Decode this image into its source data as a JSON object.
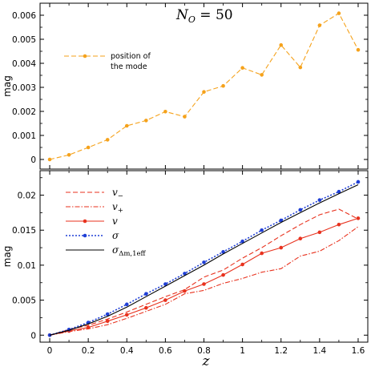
{
  "chart_data": [
    {
      "type": "line",
      "title": "N_O = 50",
      "title_main": "N",
      "title_sub": "O",
      "title_rest": " = 50",
      "xlabel": "z",
      "ylabel": "mag",
      "xlim": [
        -0.05,
        1.65
      ],
      "ylim": [
        -0.0004,
        0.0065
      ],
      "xticks": [
        "0",
        "0.2",
        "0.4",
        "0.6",
        "0.8",
        "1",
        "1.2",
        "1.4",
        "1.6"
      ],
      "yticks": [
        "0",
        "0.001",
        "0.002",
        "0.003",
        "0.004",
        "0.005",
        "0.006"
      ],
      "legend_position": "upper-left",
      "series": [
        {
          "name": "position of the mode",
          "legend_lines": [
            "position of",
            "the mode"
          ],
          "color": "#f5a21b",
          "style": "dashed",
          "marker": "circle",
          "x": [
            0,
            0.1,
            0.2,
            0.3,
            0.4,
            0.5,
            0.6,
            0.7,
            0.8,
            0.9,
            1.0,
            1.1,
            1.2,
            1.3,
            1.4,
            1.5,
            1.6
          ],
          "y": [
            0.0,
            0.00019,
            0.0005,
            0.00082,
            0.0014,
            0.00162,
            0.00199,
            0.00178,
            0.00281,
            0.00306,
            0.00381,
            0.00352,
            0.00476,
            0.00383,
            0.00558,
            0.00608,
            0.00456
          ]
        }
      ]
    },
    {
      "type": "line",
      "xlabel": "z",
      "ylabel": "mag",
      "xlim": [
        -0.05,
        1.65
      ],
      "ylim": [
        -0.001,
        0.0235
      ],
      "xticks": [
        "0",
        "0.2",
        "0.4",
        "0.6",
        "0.8",
        "1",
        "1.2",
        "1.4",
        "1.6"
      ],
      "yticks": [
        "0",
        "0.005",
        "0.01",
        "0.015",
        "0.02"
      ],
      "legend_position": "upper-left",
      "series": [
        {
          "name": "v−",
          "label_main": "v",
          "label_sub": "−",
          "color": "#e8321e",
          "style": "dashed",
          "marker": "none",
          "x": [
            0,
            0.1,
            0.2,
            0.3,
            0.4,
            0.5,
            0.6,
            0.7,
            0.8,
            0.9,
            1.0,
            1.1,
            1.2,
            1.3,
            1.4,
            1.5,
            1.6
          ],
          "y": [
            0,
            0.0008,
            0.0014,
            0.0023,
            0.0033,
            0.0044,
            0.0055,
            0.0065,
            0.0083,
            0.0093,
            0.011,
            0.0125,
            0.0142,
            0.0158,
            0.0172,
            0.018,
            0.0166
          ]
        },
        {
          "name": "v+",
          "label_main": "v",
          "label_sub": "+",
          "color": "#e8321e",
          "style": "dashdot",
          "marker": "none",
          "x": [
            0,
            0.1,
            0.2,
            0.3,
            0.4,
            0.5,
            0.6,
            0.7,
            0.8,
            0.9,
            1.0,
            1.1,
            1.2,
            1.3,
            1.4,
            1.5,
            1.6
          ],
          "y": [
            0,
            0.0005,
            0.0009,
            0.0015,
            0.0024,
            0.0034,
            0.0044,
            0.0059,
            0.0064,
            0.0074,
            0.0081,
            0.009,
            0.0095,
            0.0113,
            0.012,
            0.0135,
            0.0155
          ]
        },
        {
          "name": "v",
          "label_main": "v",
          "label_sub": "",
          "color": "#e8321e",
          "style": "solid",
          "marker": "circle",
          "x": [
            0,
            0.1,
            0.2,
            0.3,
            0.4,
            0.5,
            0.6,
            0.7,
            0.8,
            0.9,
            1.0,
            1.1,
            1.2,
            1.3,
            1.4,
            1.5,
            1.6
          ],
          "y": [
            0,
            0.0006,
            0.0011,
            0.002,
            0.0029,
            0.0039,
            0.005,
            0.0063,
            0.0073,
            0.0086,
            0.0101,
            0.0117,
            0.0125,
            0.0138,
            0.0147,
            0.0158,
            0.0167
          ]
        },
        {
          "name": "σ",
          "label_main": "σ",
          "label_sub": "",
          "color": "#1f3fd6",
          "style": "dotted",
          "marker": "circle",
          "x": [
            0,
            0.1,
            0.2,
            0.3,
            0.4,
            0.5,
            0.6,
            0.7,
            0.8,
            0.9,
            1.0,
            1.1,
            1.2,
            1.3,
            1.4,
            1.5,
            1.6
          ],
          "y": [
            0,
            0.0008,
            0.0018,
            0.003,
            0.0044,
            0.0059,
            0.0073,
            0.0088,
            0.0104,
            0.0119,
            0.0134,
            0.015,
            0.0164,
            0.0179,
            0.0193,
            0.0205,
            0.0219
          ]
        },
        {
          "name": "σΔm,1eff",
          "label_main": "σ",
          "label_sub": "Δm,1eff",
          "color": "#000000",
          "style": "solid",
          "marker": "none",
          "x": [
            0,
            0.1,
            0.2,
            0.3,
            0.4,
            0.5,
            0.6,
            0.7,
            0.8,
            0.9,
            1.0,
            1.1,
            1.2,
            1.3,
            1.4,
            1.5,
            1.6
          ],
          "y": [
            0,
            0.0007,
            0.0016,
            0.0027,
            0.004,
            0.0055,
            0.007,
            0.0085,
            0.01,
            0.0116,
            0.0131,
            0.0146,
            0.0161,
            0.0175,
            0.0189,
            0.0202,
            0.0215
          ]
        }
      ]
    }
  ]
}
